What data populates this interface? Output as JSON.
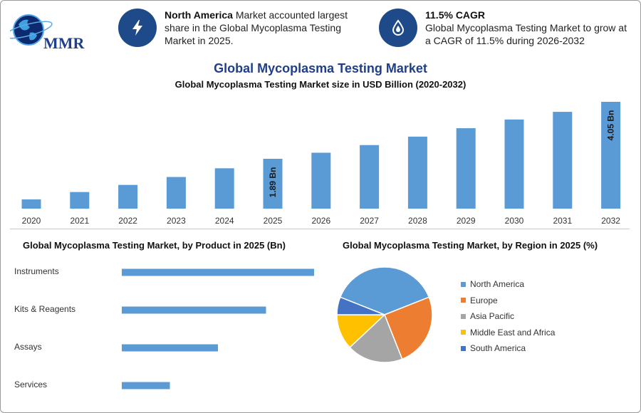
{
  "logo": {
    "text": "MMR"
  },
  "highlights": {
    "north_america": {
      "icon": "lightning-icon",
      "bold": "North America",
      "text": " Market accounted largest share in the Global Mycoplasma Testing Market in 2025."
    },
    "cagr": {
      "icon": "drop-icon",
      "bold": "11.5% CAGR",
      "text": "Global Mycoplasma Testing Market to grow at a CAGR of 11.5% during 2026-2032"
    }
  },
  "titles": {
    "main": "Global Mycoplasma Testing Market",
    "bar_chart": "Global Mycoplasma Testing Market size in USD Billion (2020-2032)",
    "product_chart": "Global Mycoplasma Testing Market, by Product in 2025 (Bn)",
    "region_chart": "Global Mycoplasma Testing Market, by Region in 2025 (%)"
  },
  "colors": {
    "bar": "#5b9bd5",
    "icon_bg": "#1f4a8a",
    "title": "#1f3f8a"
  },
  "chart_data": [
    {
      "type": "bar",
      "title": "Global Mycoplasma Testing Market size in USD Billion (2020-2032)",
      "categories": [
        "2020",
        "2021",
        "2022",
        "2023",
        "2024",
        "2025",
        "2026",
        "2027",
        "2028",
        "2029",
        "2030",
        "2031",
        "2032"
      ],
      "values": [
        0.35,
        0.63,
        0.9,
        1.2,
        1.53,
        1.89,
        2.12,
        2.41,
        2.73,
        3.05,
        3.38,
        3.67,
        4.05
      ],
      "data_labels": {
        "2025": "1.89 Bn",
        "2032": "4.05 Bn"
      },
      "ylim": [
        0,
        4.05
      ]
    },
    {
      "type": "bar",
      "orientation": "horizontal",
      "title": "Global Mycoplasma Testing Market, by Product in 2025 (Bn)",
      "categories": [
        "Instruments",
        "Kits & Reagents",
        "Assays",
        "Services"
      ],
      "values": [
        0.8,
        0.6,
        0.4,
        0.2
      ]
    },
    {
      "type": "pie",
      "title": "Global Mycoplasma Testing Market, by Region in 2025 (%)",
      "labels": [
        "North America",
        "Europe",
        "Asia Pacific",
        "Middle East and Africa",
        "South America"
      ],
      "values": [
        38,
        25,
        19,
        12,
        6
      ],
      "colors": [
        "#5b9bd5",
        "#ed7d31",
        "#a5a5a5",
        "#ffc000",
        "#4472c4"
      ],
      "legend": "right"
    }
  ]
}
